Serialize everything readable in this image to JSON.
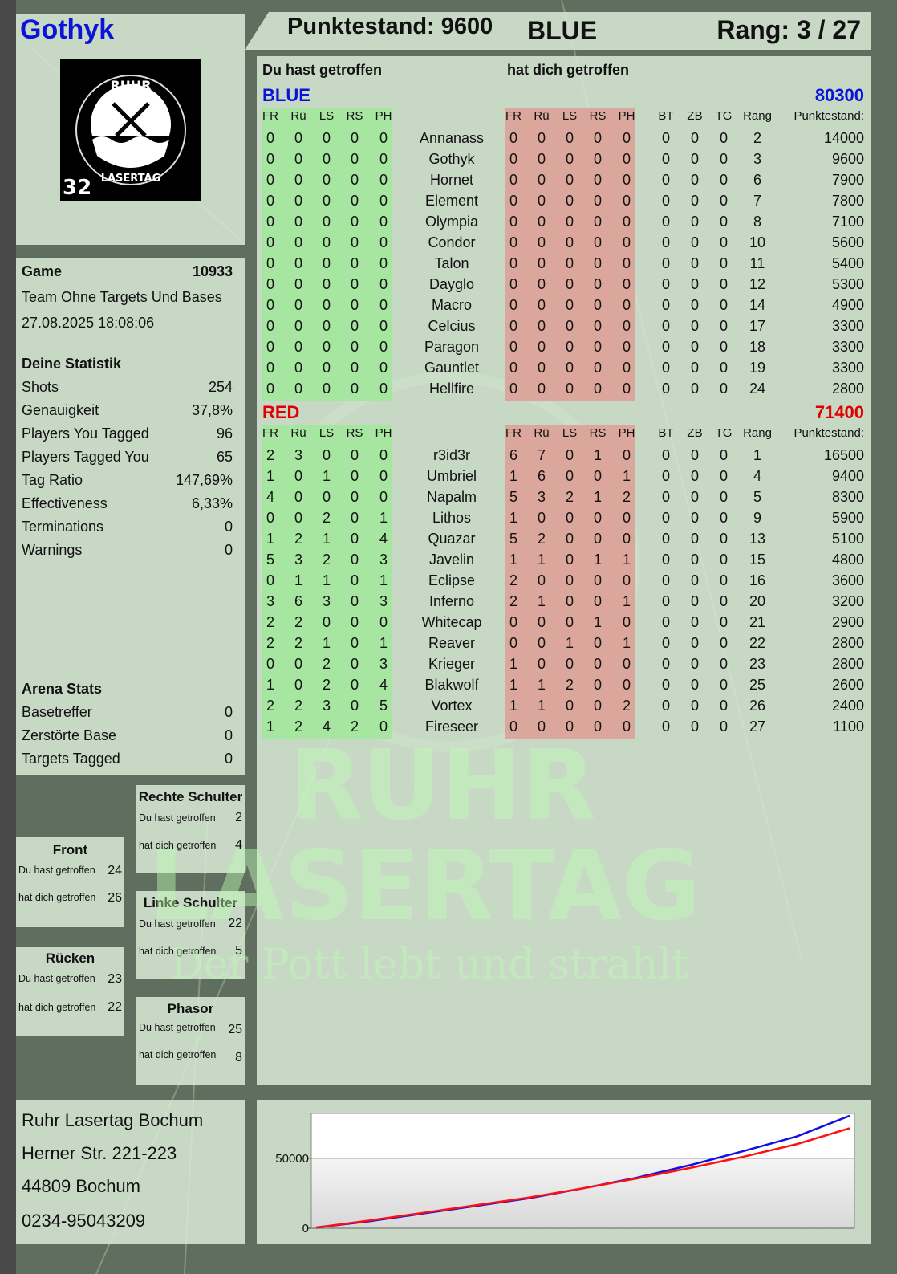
{
  "player": {
    "name": "Gothyk",
    "logo_text": "RUHR LASERTAG",
    "logo_number": "32"
  },
  "header": {
    "score_label": "Punktestand: 9600",
    "team": "BLUE",
    "rank_label": "Rang: 3 / 27"
  },
  "game": {
    "label": "Game",
    "number": "10933",
    "mode": "Team Ohne Targets Und Bases",
    "datetime": "27.08.2025 18:08:06",
    "stats_title": "Deine Statistik",
    "stats": [
      {
        "label": "Shots",
        "value": "254"
      },
      {
        "label": "Genauigkeit",
        "value": "37,8%"
      },
      {
        "label": "Players You Tagged",
        "value": "96"
      },
      {
        "label": "Players Tagged You",
        "value": "65"
      },
      {
        "label": "Tag Ratio",
        "value": "147,69%"
      },
      {
        "label": "Effectiveness",
        "value": "6,33%"
      },
      {
        "label": "Terminations",
        "value": "0"
      },
      {
        "label": "Warnings",
        "value": "0"
      }
    ],
    "arena_title": "Arena Stats",
    "arena": [
      {
        "label": "Basetreffer",
        "value": "0"
      },
      {
        "label": "Zerstörte Base",
        "value": "0"
      },
      {
        "label": "Targets Tagged",
        "value": "0"
      }
    ]
  },
  "zones": {
    "hit_label": "Du hast getroffen",
    "hitby_label": "hat dich getroffen",
    "rechte_schulter": {
      "title": "Rechte Schulter",
      "hit": "2",
      "hitby": "4"
    },
    "front": {
      "title": "Front",
      "hit": "24",
      "hitby": "26"
    },
    "linke_schulter": {
      "title": "Linke Schulter",
      "hit": "22",
      "hitby": "5"
    },
    "ruecken": {
      "title": "Rücken",
      "hit": "23",
      "hitby": "22"
    },
    "phasor": {
      "title": "Phasor",
      "hit": "25",
      "hitby": "8"
    }
  },
  "table": {
    "you_hit_title": "Du hast getroffen",
    "hit_you_title": "hat dich getroffen",
    "columns": [
      "FR",
      "Rü",
      "LS",
      "RS",
      "PH",
      "",
      "FR",
      "Rü",
      "LS",
      "RS",
      "PH",
      "BT",
      "ZB",
      "TG",
      "Rang",
      "Punktestand:"
    ],
    "colors": {
      "blue": "#0a14d8",
      "red": "#e00000",
      "hit_bg": "#a6e6a0",
      "hitby_bg": "#dba79c"
    },
    "teams": [
      {
        "name": "BLUE",
        "total": "80300",
        "color": "blue",
        "rows": [
          [
            "0",
            "0",
            "0",
            "0",
            "0",
            "Annanass",
            "0",
            "0",
            "0",
            "0",
            "0",
            "0",
            "0",
            "0",
            "2",
            "14000"
          ],
          [
            "0",
            "0",
            "0",
            "0",
            "0",
            "Gothyk",
            "0",
            "0",
            "0",
            "0",
            "0",
            "0",
            "0",
            "0",
            "3",
            "9600"
          ],
          [
            "0",
            "0",
            "0",
            "0",
            "0",
            "Hornet",
            "0",
            "0",
            "0",
            "0",
            "0",
            "0",
            "0",
            "0",
            "6",
            "7900"
          ],
          [
            "0",
            "0",
            "0",
            "0",
            "0",
            "Element",
            "0",
            "0",
            "0",
            "0",
            "0",
            "0",
            "0",
            "0",
            "7",
            "7800"
          ],
          [
            "0",
            "0",
            "0",
            "0",
            "0",
            "Olympia",
            "0",
            "0",
            "0",
            "0",
            "0",
            "0",
            "0",
            "0",
            "8",
            "7100"
          ],
          [
            "0",
            "0",
            "0",
            "0",
            "0",
            "Condor",
            "0",
            "0",
            "0",
            "0",
            "0",
            "0",
            "0",
            "0",
            "10",
            "5600"
          ],
          [
            "0",
            "0",
            "0",
            "0",
            "0",
            "Talon",
            "0",
            "0",
            "0",
            "0",
            "0",
            "0",
            "0",
            "0",
            "11",
            "5400"
          ],
          [
            "0",
            "0",
            "0",
            "0",
            "0",
            "Dayglo",
            "0",
            "0",
            "0",
            "0",
            "0",
            "0",
            "0",
            "0",
            "12",
            "5300"
          ],
          [
            "0",
            "0",
            "0",
            "0",
            "0",
            "Macro",
            "0",
            "0",
            "0",
            "0",
            "0",
            "0",
            "0",
            "0",
            "14",
            "4900"
          ],
          [
            "0",
            "0",
            "0",
            "0",
            "0",
            "Celcius",
            "0",
            "0",
            "0",
            "0",
            "0",
            "0",
            "0",
            "0",
            "17",
            "3300"
          ],
          [
            "0",
            "0",
            "0",
            "0",
            "0",
            "Paragon",
            "0",
            "0",
            "0",
            "0",
            "0",
            "0",
            "0",
            "0",
            "18",
            "3300"
          ],
          [
            "0",
            "0",
            "0",
            "0",
            "0",
            "Gauntlet",
            "0",
            "0",
            "0",
            "0",
            "0",
            "0",
            "0",
            "0",
            "19",
            "3300"
          ],
          [
            "0",
            "0",
            "0",
            "0",
            "0",
            "Hellfire",
            "0",
            "0",
            "0",
            "0",
            "0",
            "0",
            "0",
            "0",
            "24",
            "2800"
          ]
        ]
      },
      {
        "name": "RED",
        "total": "71400",
        "color": "red",
        "rows": [
          [
            "2",
            "3",
            "0",
            "0",
            "0",
            "r3id3r",
            "6",
            "7",
            "0",
            "1",
            "0",
            "0",
            "0",
            "0",
            "1",
            "16500"
          ],
          [
            "1",
            "0",
            "1",
            "0",
            "0",
            "Umbriel",
            "1",
            "6",
            "0",
            "0",
            "1",
            "0",
            "0",
            "0",
            "4",
            "9400"
          ],
          [
            "4",
            "0",
            "0",
            "0",
            "0",
            "Napalm",
            "5",
            "3",
            "2",
            "1",
            "2",
            "0",
            "0",
            "0",
            "5",
            "8300"
          ],
          [
            "0",
            "0",
            "2",
            "0",
            "1",
            "Lithos",
            "1",
            "0",
            "0",
            "0",
            "0",
            "0",
            "0",
            "0",
            "9",
            "5900"
          ],
          [
            "1",
            "2",
            "1",
            "0",
            "4",
            "Quazar",
            "5",
            "2",
            "0",
            "0",
            "0",
            "0",
            "0",
            "0",
            "13",
            "5100"
          ],
          [
            "5",
            "3",
            "2",
            "0",
            "3",
            "Javelin",
            "1",
            "1",
            "0",
            "1",
            "1",
            "0",
            "0",
            "0",
            "15",
            "4800"
          ],
          [
            "0",
            "1",
            "1",
            "0",
            "1",
            "Eclipse",
            "2",
            "0",
            "0",
            "0",
            "0",
            "0",
            "0",
            "0",
            "16",
            "3600"
          ],
          [
            "3",
            "6",
            "3",
            "0",
            "3",
            "Inferno",
            "2",
            "1",
            "0",
            "0",
            "1",
            "0",
            "0",
            "0",
            "20",
            "3200"
          ],
          [
            "2",
            "2",
            "0",
            "0",
            "0",
            "Whitecap",
            "0",
            "0",
            "0",
            "1",
            "0",
            "0",
            "0",
            "0",
            "21",
            "2900"
          ],
          [
            "2",
            "2",
            "1",
            "0",
            "1",
            "Reaver",
            "0",
            "0",
            "1",
            "0",
            "1",
            "0",
            "0",
            "0",
            "22",
            "2800"
          ],
          [
            "0",
            "0",
            "2",
            "0",
            "3",
            "Krieger",
            "1",
            "0",
            "0",
            "0",
            "0",
            "0",
            "0",
            "0",
            "23",
            "2800"
          ],
          [
            "1",
            "0",
            "2",
            "0",
            "4",
            "Blakwolf",
            "1",
            "1",
            "2",
            "0",
            "0",
            "0",
            "0",
            "0",
            "25",
            "2600"
          ],
          [
            "2",
            "2",
            "3",
            "0",
            "5",
            "Vortex",
            "1",
            "1",
            "0",
            "0",
            "2",
            "0",
            "0",
            "0",
            "26",
            "2400"
          ],
          [
            "1",
            "2",
            "4",
            "2",
            "0",
            "Fireseer",
            "0",
            "0",
            "0",
            "0",
            "0",
            "0",
            "0",
            "0",
            "27",
            "1100"
          ]
        ]
      }
    ]
  },
  "watermark": {
    "line1": "RUHR",
    "line2": "LASERTAG",
    "slogan": "Der Pott lebt und strahlt"
  },
  "address": {
    "line1": "Ruhr Lasertag Bochum",
    "line2": "Herner Str. 221-223",
    "line3": "44809 Bochum",
    "line4": "0234-95043209"
  },
  "chart_data": {
    "type": "line",
    "ylim": [
      0,
      82000
    ],
    "yticks": [
      "0",
      "50000"
    ],
    "grid": "horizontal at 50000",
    "series": [
      {
        "color": "#1010e0",
        "values": [
          500,
          5000,
          10500,
          16000,
          21500,
          28500,
          36000,
          45000,
          55000,
          65500,
          80300
        ]
      },
      {
        "color": "#ff1010",
        "values": [
          500,
          5500,
          11000,
          16500,
          22000,
          28500,
          35500,
          43000,
          51000,
          60000,
          71400
        ]
      }
    ]
  }
}
